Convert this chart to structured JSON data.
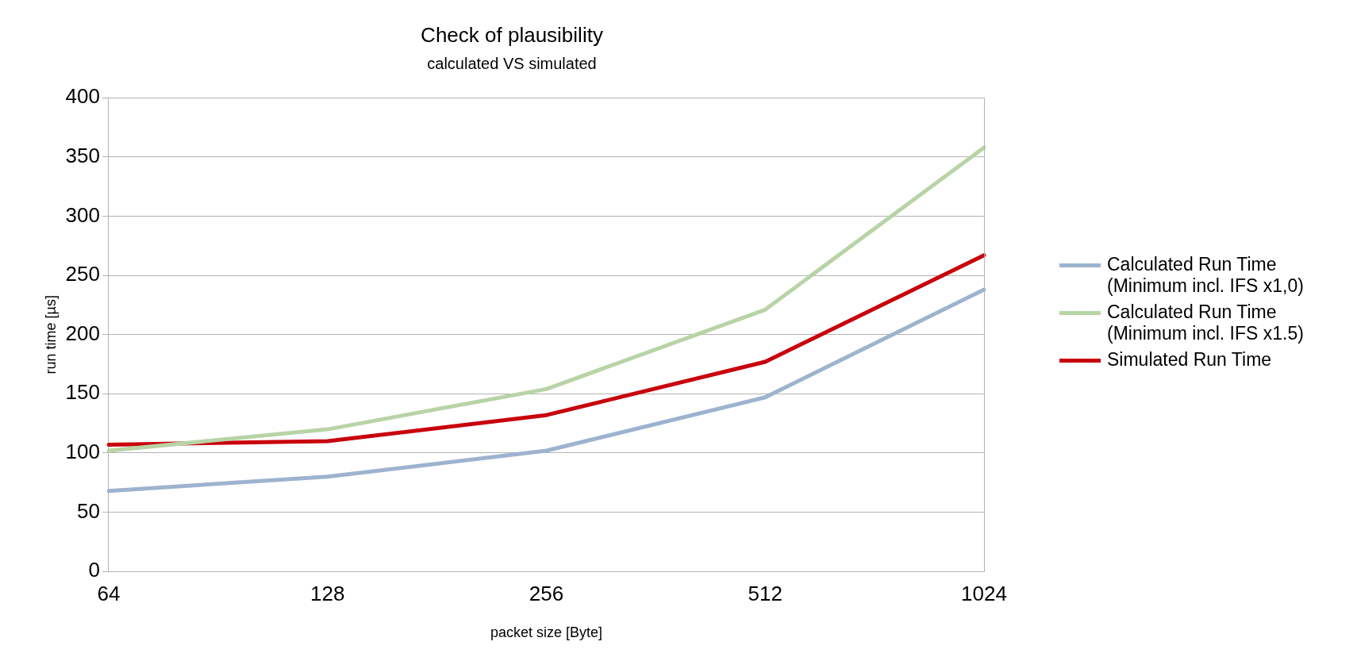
{
  "chart_data": {
    "type": "line",
    "title": "Check of plausibility",
    "subtitle": "calculated VS simulated",
    "xlabel": "packet size [Byte]",
    "ylabel": "run time [µs]",
    "categories": [
      "64",
      "128",
      "256",
      "512",
      "1024"
    ],
    "series": [
      {
        "name": "Calculated Run Time (Minimum incl. IFS x1,0)",
        "color": "#9db3cf",
        "values": [
          68,
          80,
          102,
          147,
          238
        ]
      },
      {
        "name": "Calculated Run Time (Minimum incl. IFS x1.5)",
        "color": "#b8d4a6",
        "values": [
          102,
          120,
          154,
          221,
          358
        ]
      },
      {
        "name": "Simulated Run Time",
        "color": "#c8000c",
        "values": [
          107,
          110,
          132,
          177,
          267
        ]
      }
    ],
    "ylim": [
      0,
      400
    ],
    "yticks": [
      0,
      50,
      100,
      150,
      200,
      250,
      300,
      350,
      400
    ],
    "grid": "y",
    "legend": "right",
    "marker": "none",
    "line_style": "solid"
  }
}
